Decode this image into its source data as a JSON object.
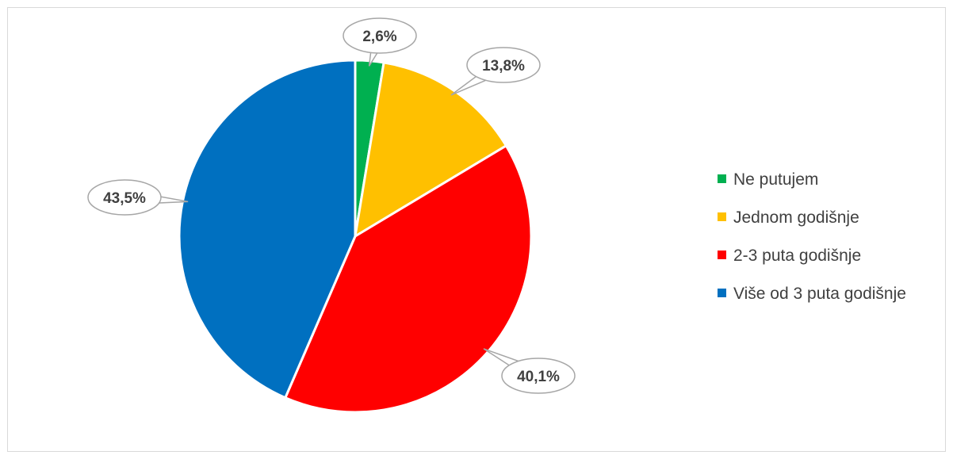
{
  "chart_data": {
    "type": "pie",
    "title": "",
    "categories": [
      "Ne putujem",
      "Jednom godišnje",
      "2-3 puta godišnje",
      "Više od 3 puta godišnje"
    ],
    "values": [
      2.6,
      13.8,
      40.1,
      43.5
    ],
    "data_labels": [
      "2,6%",
      "13,8%",
      "40,1%",
      "43,5%"
    ],
    "colors": [
      "#00b050",
      "#ffc000",
      "#ff0000",
      "#0070c0"
    ],
    "unit": "%",
    "start_angle_deg": 0,
    "direction": "clockwise",
    "legend_position": "right",
    "data_label_style": "callout"
  }
}
